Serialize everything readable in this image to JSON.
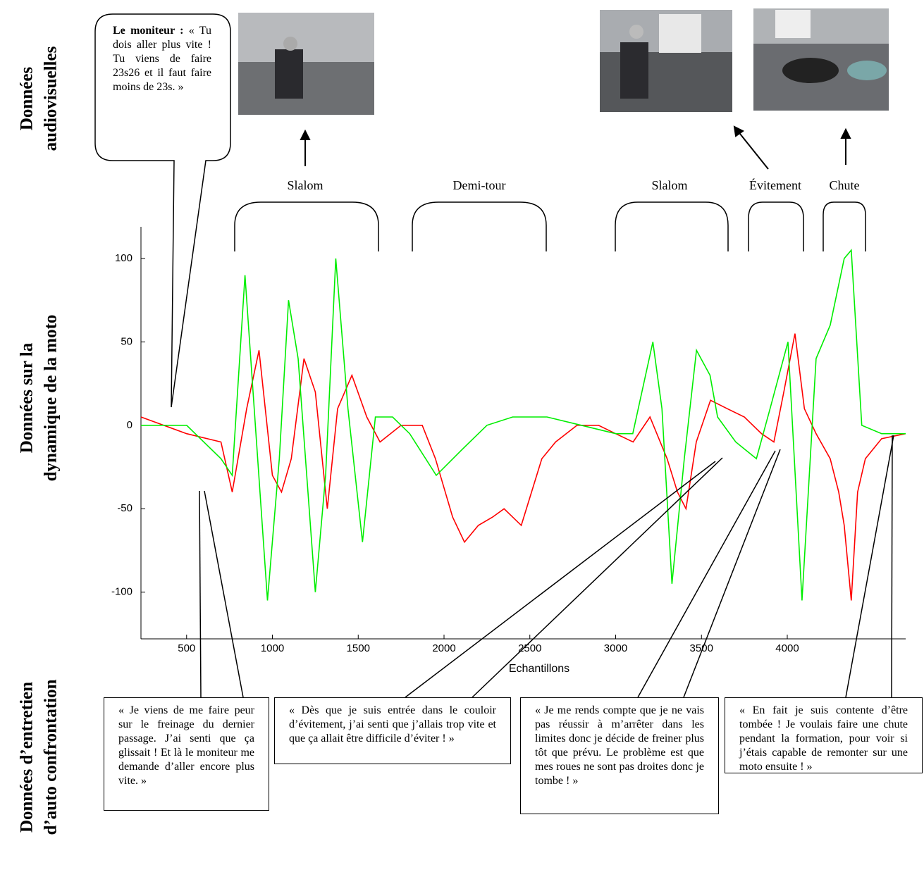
{
  "chart_data": {
    "type": "line",
    "x_label": "Echantillons",
    "xlim": [
      234,
      4690
    ],
    "ylim": [
      -128,
      119
    ],
    "xticks": [
      500,
      1000,
      1500,
      2000,
      2500,
      3000,
      3500,
      4000
    ],
    "yticks": [
      -100,
      -50,
      0,
      50,
      100
    ],
    "series": [
      {
        "color": "#ff0000",
        "x": [
          234,
          500,
          700,
          766,
          850,
          922,
          1000,
          1053,
          1110,
          1184,
          1250,
          1320,
          1380,
          1463,
          1550,
          1627,
          1750,
          1873,
          1950,
          2050,
          2119,
          2200,
          2283,
          2350,
          2450,
          2570,
          2650,
          2775,
          2900,
          3000,
          3102,
          3200,
          3300,
          3360,
          3410,
          3470,
          3553,
          3650,
          3750,
          3850,
          3922,
          3980,
          4045,
          4100,
          4168,
          4250,
          4300,
          4332,
          4373,
          4410,
          4455,
          4550,
          4690
        ],
        "values": [
          5,
          -5,
          -10,
          -40,
          10,
          45,
          -30,
          -40,
          -20,
          40,
          20,
          -50,
          10,
          30,
          5,
          -10,
          0,
          0,
          -20,
          -55,
          -70,
          -60,
          -55,
          -50,
          -60,
          -20,
          -10,
          0,
          0,
          -5,
          -10,
          5,
          -20,
          -40,
          -50,
          -10,
          15,
          10,
          5,
          -5,
          -10,
          20,
          55,
          10,
          -5,
          -20,
          -40,
          -60,
          -105,
          -40,
          -20,
          -8,
          -5
        ]
      },
      {
        "color": "#00ee00",
        "x": [
          234,
          500,
          700,
          766,
          840,
          971,
          1040,
          1094,
          1150,
          1250,
          1310,
          1369,
          1440,
          1525,
          1600,
          1700,
          1800,
          1955,
          2100,
          2250,
          2400,
          2600,
          2800,
          3000,
          3100,
          3217,
          3270,
          3328,
          3400,
          3471,
          3550,
          3594,
          3700,
          3820,
          3900,
          4004,
          4086,
          4168,
          4250,
          4332,
          4373,
          4434,
          4550,
          4619,
          4690
        ],
        "values": [
          0,
          0,
          -20,
          -30,
          90,
          -105,
          -20,
          75,
          40,
          -100,
          -30,
          100,
          10,
          -70,
          5,
          5,
          -5,
          -30,
          -15,
          0,
          5,
          5,
          0,
          -5,
          -5,
          50,
          10,
          -95,
          -20,
          45,
          30,
          5,
          -10,
          -20,
          10,
          50,
          -105,
          40,
          60,
          100,
          105,
          0,
          -5,
          -5,
          -5
        ]
      }
    ],
    "segments": [
      "Slalom",
      "Demi-tour",
      "Slalom",
      "Évitement",
      "Chute"
    ],
    "row_labels": [
      [
        "Données",
        "audiovisuelles"
      ],
      [
        "Données sur la",
        "dynamique de la moto"
      ],
      [
        "Données d’entretien",
        "d’auto confrontation"
      ]
    ],
    "bubble": {
      "speaker": "Le moniteur :",
      "text": "« Tu dois aller plus vite ! Tu viens de faire 23s26 et il faut faire moins de 23s. »"
    },
    "quotes": [
      "« Je viens de me faire peur sur le freinage du dernier passage. J’ai senti que ça glissait ! Et là le moniteur me demande d’aller encore plus vite. »",
      "« Dès que je suis entrée dans le couloir d’évitement, j’ai senti que j’allais trop vite et que ça allait être difficile d’éviter ! »",
      "« Je me rends compte que je ne vais pas réussir à m’arrêter dans les limites donc je décide de freiner plus tôt que prévu. Le problème est que mes roues ne sont pas droites donc je tombe ! »",
      "« En fait je suis contente d’être tombée ! Je voulais faire une chute pendant la formation, pour voir si j’étais capable de remonter sur une moto ensuite ! »"
    ]
  }
}
